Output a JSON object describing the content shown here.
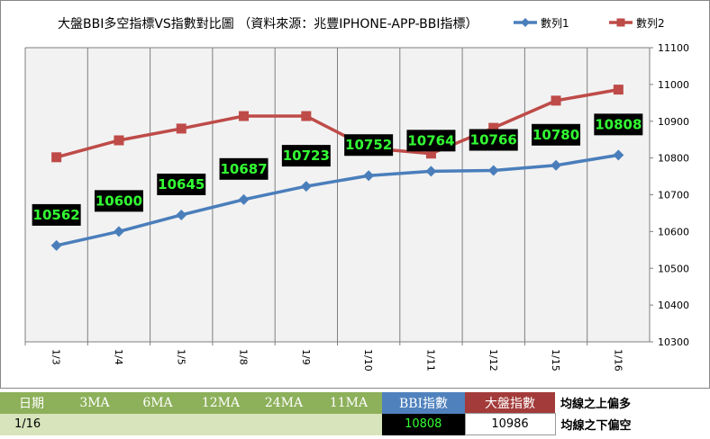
{
  "chart_data": {
    "type": "line",
    "title": "大盤BBI多空指標VS指數對比圖 （資料來源：兆豐IPHONE-APP-BBI指標）",
    "categories": [
      "1/3",
      "1/4",
      "1/5",
      "1/8",
      "1/9",
      "1/10",
      "1/11",
      "1/12",
      "1/15",
      "1/16"
    ],
    "ylim": [
      10300,
      11100
    ],
    "yticks": [
      10300,
      10400,
      10500,
      10600,
      10700,
      10800,
      10900,
      11000,
      11100
    ],
    "grid": "vertical",
    "legend_position": "top-right",
    "series": [
      {
        "name": "數列1",
        "color": "#4a7ebb",
        "marker": "diamond",
        "values": [
          10562,
          10600,
          10645,
          10687,
          10723,
          10752,
          10764,
          10766,
          10780,
          10808
        ],
        "data_labels": true
      },
      {
        "name": "數列2",
        "color": "#be4b48",
        "marker": "square",
        "values": [
          10802,
          10848,
          10880,
          10914,
          10914,
          10827,
          10812,
          10882,
          10956,
          10986
        ],
        "data_labels": false
      }
    ]
  },
  "summary": {
    "headers": [
      "日期",
      "3MA",
      "6MA",
      "12MA",
      "24MA",
      "11MA",
      "BBI指數",
      "大盤指數"
    ],
    "note1": "均線之上偏多",
    "date": "1/16",
    "bbi": "10808",
    "index": "10986",
    "note2": "均線之下偏空"
  }
}
